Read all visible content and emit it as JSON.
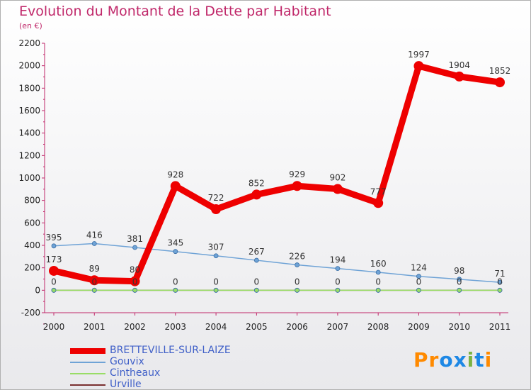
{
  "chart_data": {
    "type": "line",
    "title": "Evolution du Montant de la Dette par Habitant",
    "subtitle": "(en €)",
    "x": [
      "2000",
      "2001",
      "2002",
      "2003",
      "2004",
      "2005",
      "2006",
      "2007",
      "2008",
      "2009",
      "2010",
      "2011"
    ],
    "ylim": [
      -200,
      2200
    ],
    "yticks": [
      -200,
      0,
      200,
      400,
      600,
      800,
      1000,
      1200,
      1400,
      1600,
      1800,
      2000,
      2200
    ],
    "grid": false,
    "legend_position": "bottom-left",
    "series": [
      {
        "name": "BRETTEVILLE-SUR-LAIZE",
        "color": "#ee0000",
        "values": [
          173,
          89,
          80,
          928,
          722,
          852,
          929,
          902,
          777,
          1997,
          1904,
          1852
        ]
      },
      {
        "name": "Gouvix",
        "color": "#6fa3d6",
        "values": [
          395,
          416,
          381,
          345,
          307,
          267,
          226,
          194,
          160,
          124,
          98,
          71
        ]
      },
      {
        "name": "Cintheaux",
        "color": "#99dd66",
        "values": [
          0,
          0,
          0,
          0,
          0,
          0,
          0,
          0,
          0,
          0,
          0,
          0
        ]
      },
      {
        "name": "Urville",
        "color": "#7a3030",
        "values": [
          0,
          0,
          0,
          0,
          0,
          0,
          0,
          0,
          0,
          0,
          0,
          0
        ]
      }
    ]
  },
  "brand": {
    "text": "Proxiti",
    "colors": [
      "#ff8a00",
      "#ff8a00",
      "#1e88e5",
      "#1e88e5",
      "#7cb342",
      "#1e88e5",
      "#ff8a00"
    ]
  }
}
